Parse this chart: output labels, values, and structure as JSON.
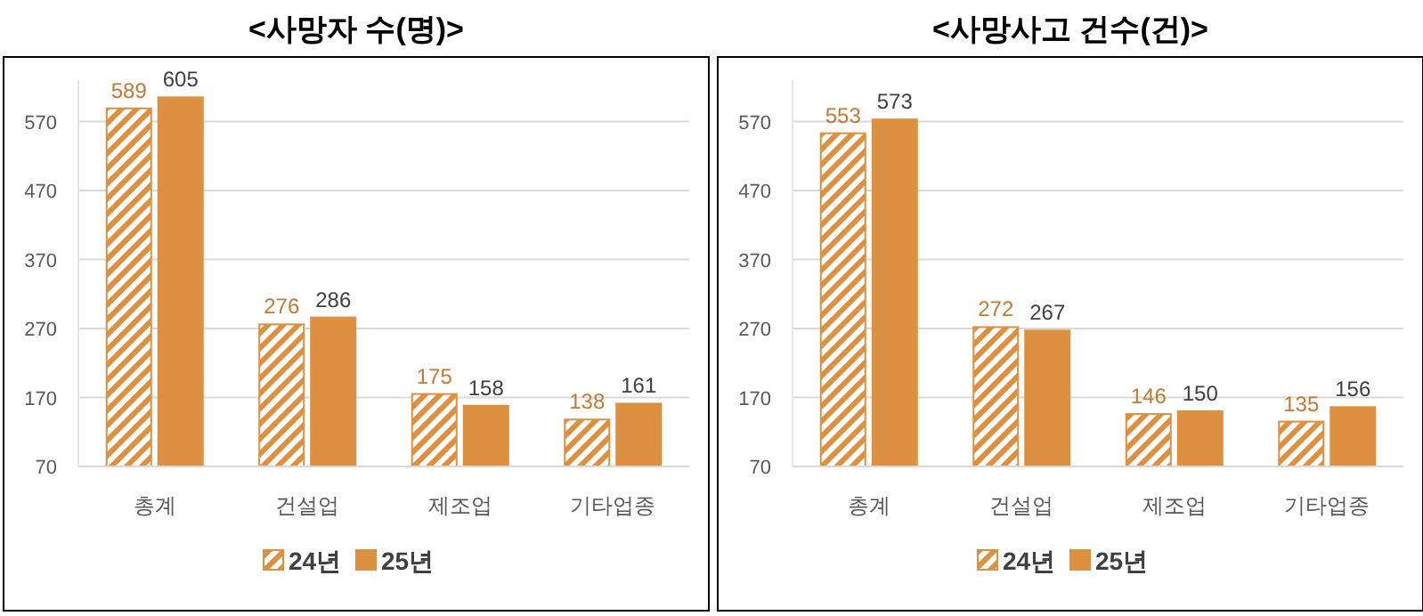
{
  "chart_data": [
    {
      "type": "bar",
      "title": "<사망자 수(명)>",
      "categories": [
        "총계",
        "건설업",
        "제조업",
        "기타업종"
      ],
      "series": [
        {
          "name": "24년",
          "color": "#dc9040",
          "values": [
            589,
            276,
            175,
            138
          ]
        },
        {
          "name": "25년",
          "color": "#dc9040",
          "values": [
            605,
            286,
            158,
            161
          ]
        }
      ],
      "ylim": [
        70,
        630
      ],
      "yticks": [
        70,
        170,
        270,
        370,
        470,
        570
      ],
      "grid": "y",
      "legend": "bottom",
      "data_labels": true
    },
    {
      "type": "bar",
      "title": "<사망사고 건수(건)>",
      "categories": [
        "총계",
        "건설업",
        "제조업",
        "기타업종"
      ],
      "series": [
        {
          "name": "24년",
          "color": "#dc9040",
          "values": [
            553,
            272,
            146,
            135
          ]
        },
        {
          "name": "25년",
          "color": "#dc9040",
          "values": [
            573,
            267,
            150,
            156
          ]
        }
      ],
      "ylim": [
        70,
        630
      ],
      "yticks": [
        70,
        170,
        270,
        370,
        470,
        570
      ],
      "grid": "y",
      "legend": "bottom",
      "data_labels": true
    }
  ]
}
